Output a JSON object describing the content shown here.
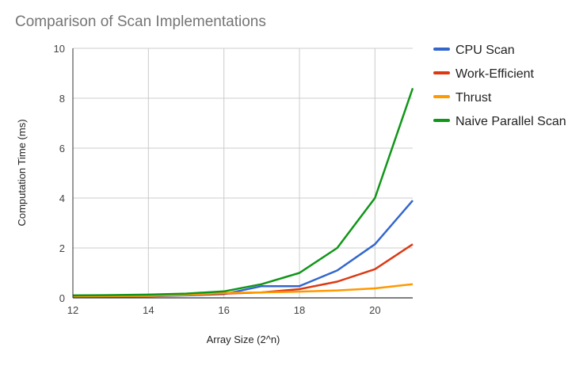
{
  "chart_data": {
    "type": "line",
    "title": "Comparison of Scan Implementations",
    "xlabel": "Array Size (2^n)",
    "ylabel": "Computation Time (ms)",
    "x": [
      12,
      13,
      14,
      15,
      16,
      17,
      18,
      19,
      20,
      21
    ],
    "xlim": [
      12,
      21
    ],
    "ylim": [
      0,
      10
    ],
    "x_ticks": [
      "12",
      "14",
      "16",
      "18",
      "20"
    ],
    "y_ticks": [
      "0",
      "2",
      "4",
      "6",
      "8",
      "10"
    ],
    "grid": true,
    "legend_position": "right",
    "series": [
      {
        "name": "CPU Scan",
        "color": "#3366cc",
        "values": [
          0.04,
          0.05,
          0.06,
          0.1,
          0.15,
          0.47,
          0.47,
          1.1,
          2.15,
          3.9
        ]
      },
      {
        "name": "Work-Efficient",
        "color": "#dc3912",
        "values": [
          0.08,
          0.09,
          0.1,
          0.13,
          0.17,
          0.22,
          0.35,
          0.65,
          1.15,
          2.15
        ]
      },
      {
        "name": "Thrust",
        "color": "#ff9900",
        "values": [
          0.06,
          0.07,
          0.08,
          0.12,
          0.2,
          0.22,
          0.25,
          0.3,
          0.38,
          0.55
        ]
      },
      {
        "name": "Naive Parallel Scan",
        "color": "#109618",
        "values": [
          0.1,
          0.11,
          0.13,
          0.17,
          0.26,
          0.55,
          1.0,
          2.0,
          4.0,
          8.4
        ]
      }
    ]
  }
}
